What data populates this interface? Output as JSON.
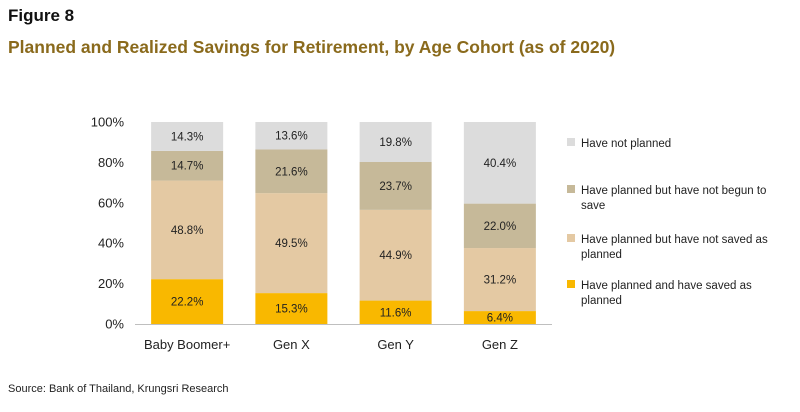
{
  "figure_label": "Figure 8",
  "title": "Planned and Realized Savings for Retirement, by Age Cohort (as of 2020)",
  "source": "Source: Bank of Thailand, Krungsri Research",
  "chart_data": {
    "type": "bar",
    "stacked": true,
    "categories": [
      "Baby Boomer+",
      "Gen X",
      "Gen Y",
      "Gen Z"
    ],
    "ylim": [
      0,
      100
    ],
    "yticks": [
      0,
      20,
      40,
      60,
      80,
      100
    ],
    "ytick_labels": [
      "0%",
      "20%",
      "40%",
      "60%",
      "80%",
      "100%"
    ],
    "grid": false,
    "legend_position": "right",
    "series": [
      {
        "name": "Have planned and have saved as planned",
        "legend_lines": [
          "Have planned and have saved as",
          "planned"
        ],
        "color": "#f9b800",
        "values": [
          22.2,
          15.3,
          11.6,
          6.4
        ],
        "labels": [
          "22.2%",
          "15.3%",
          "11.6%",
          "6.4%"
        ]
      },
      {
        "name": "Have planned but have not saved as planned",
        "legend_lines": [
          "Have planned but have not saved as",
          "planned"
        ],
        "color": "#e4c9a3",
        "values": [
          48.8,
          49.5,
          44.9,
          31.2
        ],
        "labels": [
          "48.8%",
          "49.5%",
          "44.9%",
          "31.2%"
        ]
      },
      {
        "name": "Have planned but have not begun to save",
        "legend_lines": [
          "Have planned but have not begun to",
          "save"
        ],
        "color": "#c6b999",
        "values": [
          14.7,
          21.6,
          23.7,
          22.0
        ],
        "labels": [
          "14.7%",
          "21.6%",
          "23.7%",
          "22.0%"
        ]
      },
      {
        "name": "Have not planned",
        "legend_lines": [
          "Have not planned"
        ],
        "color": "#dcdcdc",
        "values": [
          14.3,
          13.6,
          19.8,
          40.4
        ],
        "labels": [
          "14.3%",
          "13.6%",
          "19.8%",
          "40.4%"
        ]
      }
    ]
  }
}
